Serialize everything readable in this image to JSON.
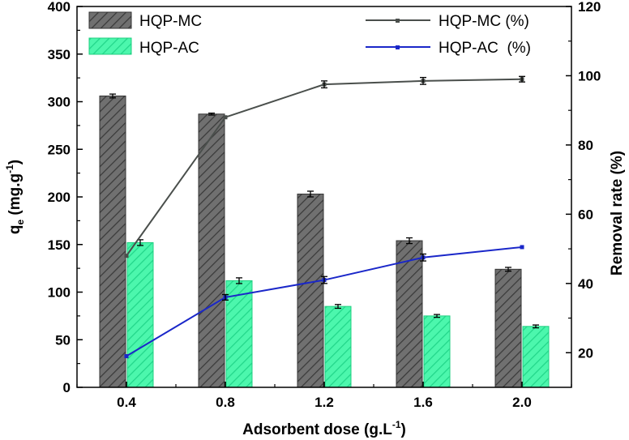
{
  "chart_data": {
    "type": "bar+line",
    "categories": [
      "0.4",
      "0.8",
      "1.2",
      "1.6",
      "2.0"
    ],
    "bar_series": [
      {
        "name": "HQP-MC",
        "values": [
          306,
          287,
          203,
          154,
          124
        ],
        "errors": [
          2,
          1,
          3,
          3,
          2
        ],
        "color": "#6b6b6b",
        "stroke": "#333333"
      },
      {
        "name": "HQP-AC",
        "values": [
          152,
          112,
          85,
          75,
          64
        ],
        "errors": [
          3,
          3,
          2,
          1.5,
          1.5
        ],
        "color": "#3df5a6",
        "stroke": "#1fcf80"
      }
    ],
    "line_series": [
      {
        "name": "HQP-MC (%)",
        "values": [
          48,
          88,
          97.5,
          98.5,
          99
        ],
        "errors": [
          0,
          0,
          1,
          1,
          0.8
        ],
        "color": "#4a4f4c"
      },
      {
        "name": "HQP-AC  (%)",
        "values": [
          19,
          36,
          41,
          47.5,
          50.5
        ],
        "errors": [
          0,
          0.8,
          1,
          1,
          0
        ],
        "color": "#1a27c9"
      }
    ],
    "xlabel_text": "Adsorbent dose (g.L",
    "xlabel_sup": "-1",
    "xlabel_close": ")",
    "ylabel_main": "q",
    "ylabel_sub": "e",
    "ylabel_rest": " (mg.g",
    "ylabel_sup": "-1",
    "ylabel_close": ")",
    "y2label": "Removal rate (%)",
    "ylim": [
      0,
      400
    ],
    "y2lim": [
      10,
      120
    ],
    "yticks": [
      0,
      50,
      100,
      150,
      200,
      250,
      300,
      350,
      400
    ],
    "y2ticks": [
      20,
      40,
      60,
      80,
      100,
      120
    ]
  }
}
